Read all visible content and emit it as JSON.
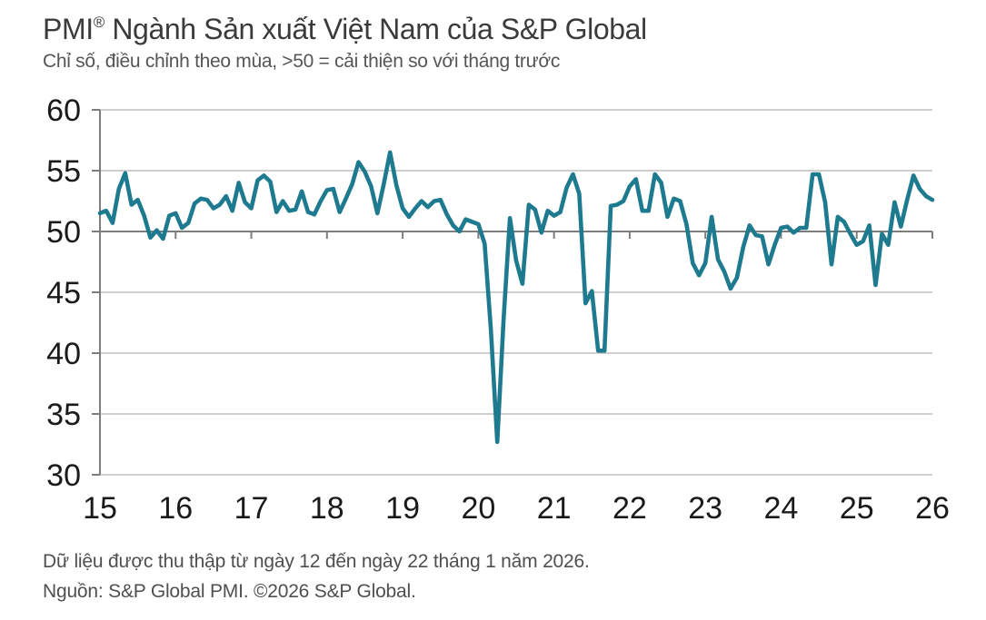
{
  "header": {
    "title_brand": "PMI",
    "title_reg": "®",
    "title_rest": " Ngành Sản xuất Việt Nam của S&P Global",
    "subtitle": "Chỉ số, điều chỉnh theo mùa, >50 = cải thiện so với tháng trước"
  },
  "footer": {
    "line1": "Dữ liệu được thu thập từ ngày 12 đến ngày 22 tháng 1 năm 2026.",
    "line2": "Nguồn: S&P Global PMI. ©2026 S&P Global."
  },
  "chart_data": {
    "type": "line",
    "title": "PMI® Ngành Sản xuất Việt Nam của S&P Global",
    "subtitle": "Chỉ số, điều chỉnh theo mùa, >50 = cải thiện so với tháng trước",
    "xlabel": "",
    "ylabel": "",
    "ylim": [
      30,
      60
    ],
    "yticks": [
      30,
      35,
      40,
      45,
      50,
      55,
      60
    ],
    "baseline": 50,
    "x_tick_labels": [
      "15",
      "16",
      "17",
      "18",
      "19",
      "20",
      "21",
      "22",
      "23",
      "24",
      "25",
      "26"
    ],
    "x_start": "2015-01",
    "x_end": "2026-01",
    "frequency": "monthly",
    "grid": "horizontal",
    "legend": "none",
    "colors": {
      "line": "#1e7a8e",
      "grid": "#c8c8c8",
      "axis": "#7d7d7d",
      "tick_label": "#1a1a1a"
    },
    "series": [
      {
        "name": "PMI",
        "color": "#1e7a8e",
        "values": [
          51.5,
          51.7,
          50.7,
          53.5,
          54.8,
          52.2,
          52.6,
          51.3,
          49.5,
          50.1,
          49.4,
          51.3,
          51.5,
          50.3,
          50.7,
          52.3,
          52.7,
          52.6,
          51.9,
          52.2,
          52.9,
          51.7,
          54.0,
          52.4,
          51.9,
          54.2,
          54.6,
          54.1,
          51.6,
          52.5,
          51.7,
          51.8,
          53.3,
          51.6,
          51.4,
          52.5,
          53.4,
          53.5,
          51.6,
          52.7,
          53.9,
          55.7,
          54.9,
          53.7,
          51.5,
          53.9,
          56.5,
          53.8,
          51.9,
          51.2,
          51.9,
          52.5,
          52.0,
          52.5,
          52.6,
          51.4,
          50.5,
          50.0,
          51.0,
          50.8,
          50.6,
          49.0,
          41.9,
          32.7,
          42.7,
          51.1,
          47.6,
          45.7,
          52.2,
          51.8,
          49.9,
          51.7,
          51.3,
          51.6,
          53.6,
          54.7,
          53.1,
          44.1,
          45.1,
          40.2,
          40.2,
          52.1,
          52.2,
          52.5,
          53.7,
          54.3,
          51.7,
          51.7,
          54.7,
          54.0,
          51.2,
          52.7,
          52.5,
          50.6,
          47.4,
          46.4,
          47.4,
          51.2,
          47.7,
          46.7,
          45.3,
          46.2,
          48.7,
          50.5,
          49.7,
          49.6,
          47.3,
          48.9,
          50.3,
          50.4,
          49.9,
          50.3,
          50.3,
          54.7,
          54.7,
          52.4,
          47.3,
          51.2,
          50.8,
          49.8,
          48.9,
          49.2,
          50.5,
          45.6,
          49.8,
          48.9,
          52.4,
          50.4,
          52.6,
          54.6,
          53.5,
          52.9,
          52.6
        ]
      }
    ]
  }
}
